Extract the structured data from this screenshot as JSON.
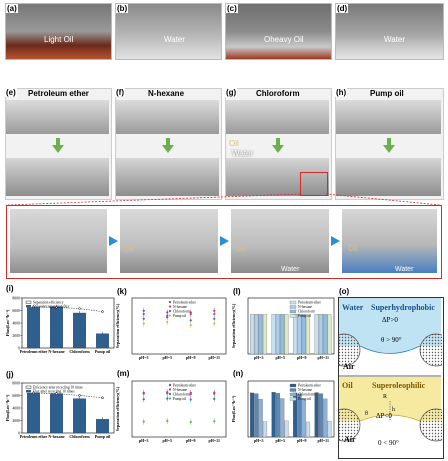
{
  "panels": {
    "a": {
      "label": "(a)",
      "caption": "Light Oil"
    },
    "b": {
      "label": "(b)",
      "caption": "Water"
    },
    "c": {
      "label": "(c)",
      "caption": "Oheavy Oil"
    },
    "d": {
      "label": "(d)",
      "caption": "Water"
    },
    "e": {
      "label": "(e)",
      "title": "Petroleum ether"
    },
    "f": {
      "label": "(f)",
      "title": "N-hexane"
    },
    "g": {
      "label": "(g)",
      "title": "Chloroform",
      "oil": "Oil",
      "water": "Water"
    },
    "h": {
      "label": "(h)",
      "title": "Pump oil"
    },
    "strip": {
      "oil1": "Oil",
      "oil2": "Oil",
      "oil3": "Oil",
      "water1": "Water",
      "water2": "Water"
    },
    "i": {
      "label": "(i)"
    },
    "j": {
      "label": "(j)"
    },
    "k": {
      "label": "(k)"
    },
    "l": {
      "label": "(l)"
    },
    "m": {
      "label": "(m)"
    },
    "n": {
      "label": "(n)"
    },
    "o": {
      "label": "(o)",
      "top": {
        "water": "Water",
        "title": "Superhydrophobic",
        "dp": "ΔP>0",
        "theta": "θ > 90°",
        "air": "Air"
      },
      "bottom": {
        "oil": "Oil",
        "title": "Superoleophilic",
        "dp": "ΔP<0",
        "theta": "0 < 90°",
        "air": "Air",
        "r": "R",
        "h": "h",
        "ts": "θ"
      }
    }
  },
  "chart_data": [
    {
      "id": "i",
      "type": "bar",
      "categories": [
        "Petroleum ether",
        "N-hexane",
        "Chloroform",
        "Pump oil"
      ],
      "series": [
        {
          "name": "Oil-water separation flux",
          "values": [
            6500,
            6600,
            5600,
            2300
          ]
        },
        {
          "name": "Separation efficiency",
          "values": [
            99.2,
            99.1,
            98.9,
            98.4
          ]
        }
      ],
      "ylabel": "Flux(Lm⁻²h⁻¹)",
      "ylim": [
        0,
        8000
      ],
      "yticks": [
        "0",
        "2000",
        "4000",
        "6000",
        "8000"
      ],
      "legend": [
        "Separation efficiency",
        "Oil-water separation flux"
      ]
    },
    {
      "id": "j",
      "type": "bar",
      "categories": [
        "Petroleum ether",
        "N-hexane",
        "Chloroform",
        "Pump oil"
      ],
      "series": [
        {
          "name": "Flux after recycling 10 times",
          "values": [
            6400,
            6300,
            5500,
            2200
          ]
        },
        {
          "name": "Efficiency after recycling 10 times",
          "values": [
            99.0,
            98.9,
            98.6,
            98.2
          ]
        }
      ],
      "ylabel": "Flux(Lm⁻²h⁻¹)",
      "ylim": [
        0,
        8000
      ],
      "yticks": [
        "0",
        "2000",
        "4000",
        "6000",
        "8000"
      ],
      "legend": [
        "Efficiency after recycling 10 times",
        "Flux after recycling 10 times"
      ]
    },
    {
      "id": "k",
      "type": "scatter",
      "categories": [
        "pH=3",
        "pH=5",
        "pH=9",
        "pH=11"
      ],
      "series": [
        {
          "name": "Petroleum ether",
          "color": "#7b3fbf",
          "values": [
            99.7,
            99.6,
            99.6,
            99.7
          ]
        },
        {
          "name": "N-hexane",
          "color": "#e23b3b",
          "values": [
            99.5,
            99.4,
            99.5,
            99.5
          ]
        },
        {
          "name": "Chloroform",
          "color": "#2f6fd6",
          "values": [
            99.2,
            99.3,
            99.1,
            99.2
          ]
        },
        {
          "name": "Pump oil",
          "color": "#e0b43a",
          "values": [
            98.9,
            99.0,
            98.8,
            98.9
          ]
        }
      ],
      "ylabel": "Separation efficiency(%)",
      "ylim": [
        97,
        100.5
      ]
    },
    {
      "id": "l",
      "type": "bar",
      "categories": [
        "pH=3",
        "pH=5",
        "pH=9",
        "pH=11"
      ],
      "series": [
        {
          "name": "Petroleum ether",
          "values": [
            99.5,
            99.4,
            99.4,
            99.5
          ]
        },
        {
          "name": "N-hexane",
          "values": [
            99.3,
            99.3,
            99.2,
            99.3
          ]
        },
        {
          "name": "Chloroform",
          "values": [
            99.0,
            99.1,
            99.0,
            99.0
          ]
        },
        {
          "name": "Pump oil",
          "values": [
            98.7,
            98.8,
            98.6,
            98.7
          ]
        }
      ],
      "ylabel": "Separation efficiency(%)",
      "ylim": [
        0,
        140
      ]
    },
    {
      "id": "m",
      "type": "scatter",
      "categories": [
        "pH=3",
        "pH=5",
        "pH=9",
        "pH=11"
      ],
      "series": [
        {
          "name": "Petroleum ether",
          "color": "#7b3fbf",
          "values": [
            6300,
            6400,
            6300,
            6350
          ]
        },
        {
          "name": "N-hexane",
          "color": "#e23b3b",
          "values": [
            6200,
            6250,
            6150,
            6200
          ]
        },
        {
          "name": "Chloroform",
          "color": "#2f6fd6",
          "values": [
            5400,
            5500,
            5350,
            5450
          ]
        },
        {
          "name": "Pump oil",
          "color": "#6ab04c",
          "values": [
            2200,
            2300,
            2150,
            2250
          ]
        }
      ],
      "ylabel": "Separation efficiency(%)",
      "ylim": [
        0,
        8000
      ]
    },
    {
      "id": "n",
      "type": "bar",
      "categories": [
        "pH=3",
        "pH=5",
        "pH=9",
        "pH=11"
      ],
      "series": [
        {
          "name": "Petroleum ether",
          "values": [
            6300,
            6400,
            6300,
            6350
          ]
        },
        {
          "name": "N-hexane",
          "values": [
            6200,
            6250,
            6150,
            6200
          ]
        },
        {
          "name": "Chloroform",
          "values": [
            5400,
            5500,
            5350,
            5450
          ]
        },
        {
          "name": "Pump oil",
          "values": [
            2200,
            2300,
            2150,
            2250
          ]
        }
      ],
      "ylabel": "Flux(Lm⁻²h⁻¹)",
      "ylim": [
        0,
        8000
      ]
    }
  ],
  "colors": {
    "bar_main": "#2f5f8f",
    "bar_light": "#a8c6e0",
    "l_series": [
      "#c9dff0",
      "#a8cde6",
      "#8fbcdc",
      "#dbe8c4"
    ],
    "n_series": [
      "#2f5f8f",
      "#5b86b5",
      "#8fb0d4",
      "#c9dcef"
    ],
    "red_frame": "#d12b2b"
  }
}
